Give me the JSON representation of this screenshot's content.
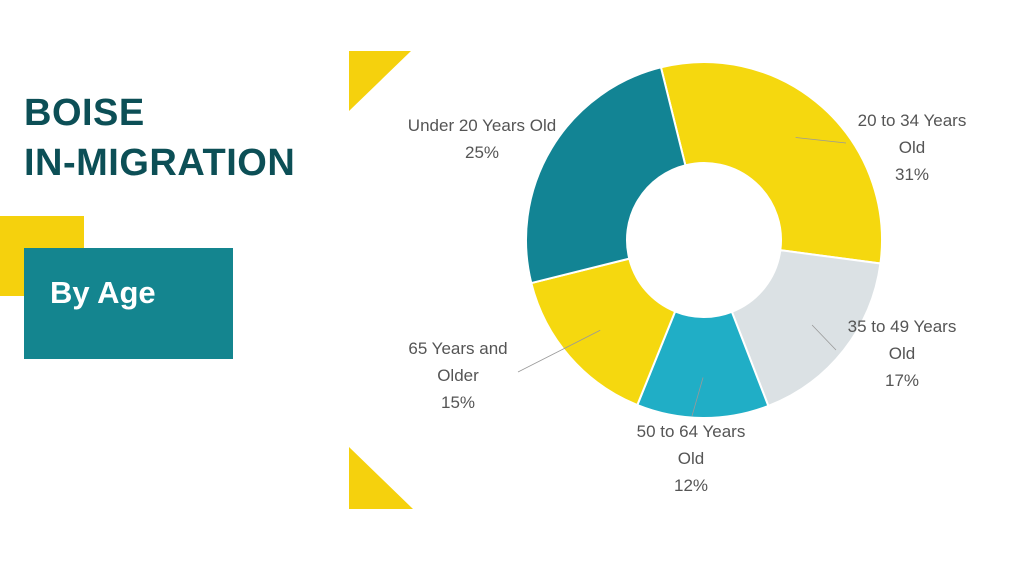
{
  "slide": {
    "title_line1": "BOISE",
    "title_line2": "IN-MIGRATION",
    "subtitle": "By Age"
  },
  "colors": {
    "title": "#0c4f56",
    "accent_yellow": "#f5d10d",
    "accent_teal": "#14858f"
  },
  "chart_data": {
    "type": "pie",
    "variant": "donut",
    "title": "",
    "slices": [
      {
        "label": [
          "20 to 34 Years",
          "Old"
        ],
        "value": 31,
        "pct_label": "31%",
        "color": "#f5d80f"
      },
      {
        "label": [
          "35 to 49 Years",
          "Old"
        ],
        "value": 17,
        "pct_label": "17%",
        "color": "#dbe1e4"
      },
      {
        "label": [
          "50 to 64 Years",
          "Old"
        ],
        "value": 12,
        "pct_label": "12%",
        "color": "#20aec6"
      },
      {
        "label": [
          "65 Years and",
          "Older"
        ],
        "value": 15,
        "pct_label": "15%",
        "color": "#f5d80f"
      },
      {
        "label": [
          "Under 20 Years Old"
        ],
        "value": 25,
        "pct_label": "25%",
        "color": "#128494"
      }
    ]
  }
}
